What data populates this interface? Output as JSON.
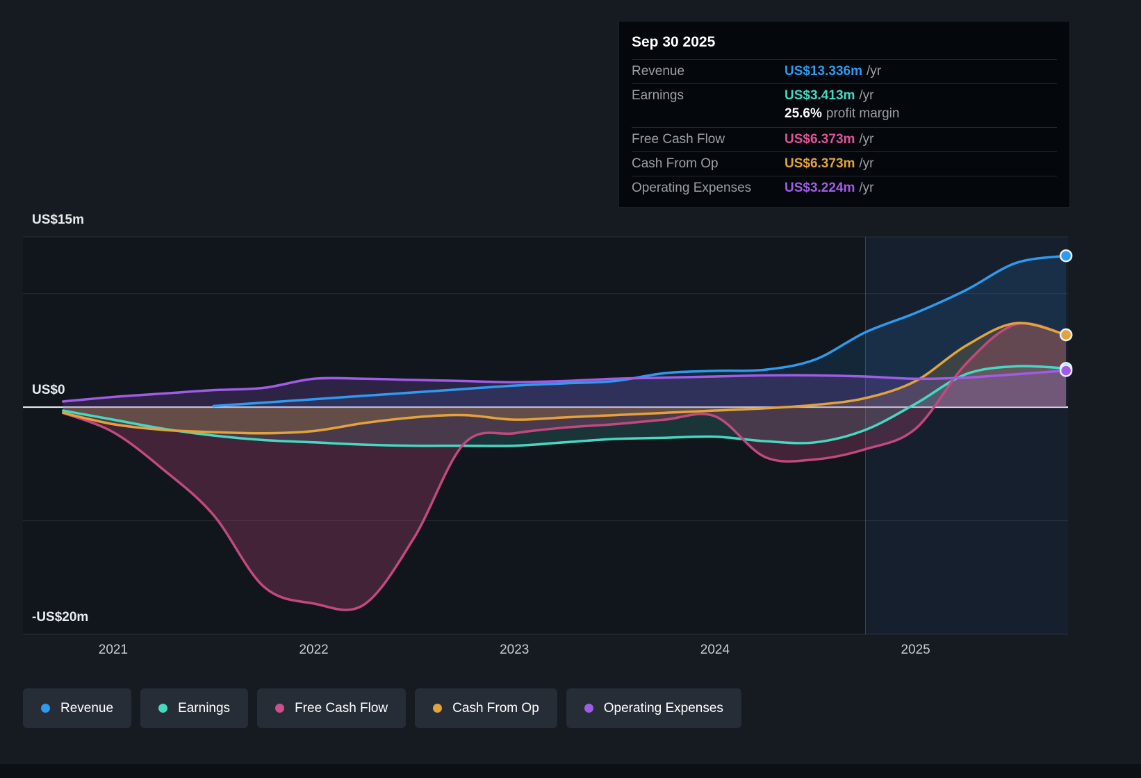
{
  "tooltip": {
    "date": "Sep 30 2025",
    "rows": [
      {
        "label": "Revenue",
        "value": "US$13.336m",
        "suffix": "/yr",
        "color": "#2d9bf0"
      },
      {
        "label": "Earnings",
        "value": "US$3.413m",
        "suffix": "/yr",
        "color": "#45d8c2",
        "extra_value": "25.6%",
        "extra_label": "profit margin"
      },
      {
        "label": "Free Cash Flow",
        "value": "US$6.373m",
        "suffix": "/yr",
        "color": "#e0559a"
      },
      {
        "label": "Cash From Op",
        "value": "US$6.373m",
        "suffix": "/yr",
        "color": "#e2a33d"
      },
      {
        "label": "Operating Expenses",
        "value": "US$3.224m",
        "suffix": "/yr",
        "color": "#a05ce6"
      }
    ]
  },
  "axes": {
    "y_labels": [
      {
        "label": "US$15m",
        "value": 15
      },
      {
        "label": "US$0",
        "value": 0
      },
      {
        "label": "-US$20m",
        "value": -20
      }
    ],
    "x_labels": [
      "2021",
      "2022",
      "2023",
      "2024",
      "2025"
    ]
  },
  "legend": {
    "items": [
      {
        "label": "Revenue",
        "color": "#2d9bf0"
      },
      {
        "label": "Earnings",
        "color": "#45d8c2"
      },
      {
        "label": "Free Cash Flow",
        "color": "#cf4f8e"
      },
      {
        "label": "Cash From Op",
        "color": "#e2a33d"
      },
      {
        "label": "Operating Expenses",
        "color": "#a05ce6"
      }
    ]
  },
  "chart_data": {
    "type": "line",
    "title": "",
    "x": [
      2020.75,
      2021,
      2021.25,
      2021.5,
      2021.75,
      2022,
      2022.25,
      2022.5,
      2022.75,
      2023,
      2023.25,
      2023.5,
      2023.75,
      2024,
      2024.25,
      2024.5,
      2024.75,
      2025,
      2025.25,
      2025.5,
      2025.75
    ],
    "series": [
      {
        "name": "Revenue",
        "color": "#2d9bf0",
        "values": [
          null,
          null,
          null,
          0.1,
          0.4,
          0.7,
          1.0,
          1.3,
          1.6,
          1.9,
          2.1,
          2.3,
          3.0,
          3.2,
          3.3,
          4.2,
          6.6,
          8.3,
          10.3,
          12.7,
          13.336
        ]
      },
      {
        "name": "Earnings",
        "color": "#45d8c2",
        "values": [
          -0.3,
          -1.1,
          -1.9,
          -2.5,
          -2.9,
          -3.1,
          -3.3,
          -3.4,
          -3.4,
          -3.4,
          -3.1,
          -2.8,
          -2.7,
          -2.6,
          -3.0,
          -3.1,
          -2.0,
          0.3,
          2.9,
          3.6,
          3.413
        ]
      },
      {
        "name": "Free Cash Flow",
        "color": "#c2497f",
        "values": [
          -0.5,
          -2.2,
          -5.5,
          -9.5,
          -15.8,
          -17.3,
          -17.4,
          -11.5,
          -3.2,
          -2.3,
          -1.8,
          -1.5,
          -1.1,
          -0.8,
          -4.4,
          -4.6,
          -3.7,
          -1.9,
          3.8,
          7.3,
          6.373
        ]
      },
      {
        "name": "Cash From Op",
        "color": "#e2a33d",
        "values": [
          -0.5,
          -1.5,
          -2.0,
          -2.2,
          -2.3,
          -2.1,
          -1.4,
          -0.9,
          -0.7,
          -1.1,
          -0.9,
          -0.7,
          -0.5,
          -0.3,
          -0.1,
          0.2,
          0.8,
          2.3,
          5.4,
          7.4,
          6.373
        ]
      },
      {
        "name": "Operating Expenses",
        "color": "#a05ce6",
        "values": [
          0.5,
          0.9,
          1.2,
          1.5,
          1.7,
          2.5,
          2.5,
          2.4,
          2.3,
          2.2,
          2.3,
          2.5,
          2.6,
          2.7,
          2.8,
          2.8,
          2.7,
          2.5,
          2.6,
          2.9,
          3.224
        ]
      }
    ],
    "ylim": [
      -20,
      15
    ],
    "xlim": [
      2020.55,
      2025.76
    ],
    "grid_values": [
      15,
      10,
      -10,
      -20
    ],
    "zero_value": 0,
    "highlight_start": 2024.75,
    "legend_position": "bottom",
    "grid": true
  }
}
